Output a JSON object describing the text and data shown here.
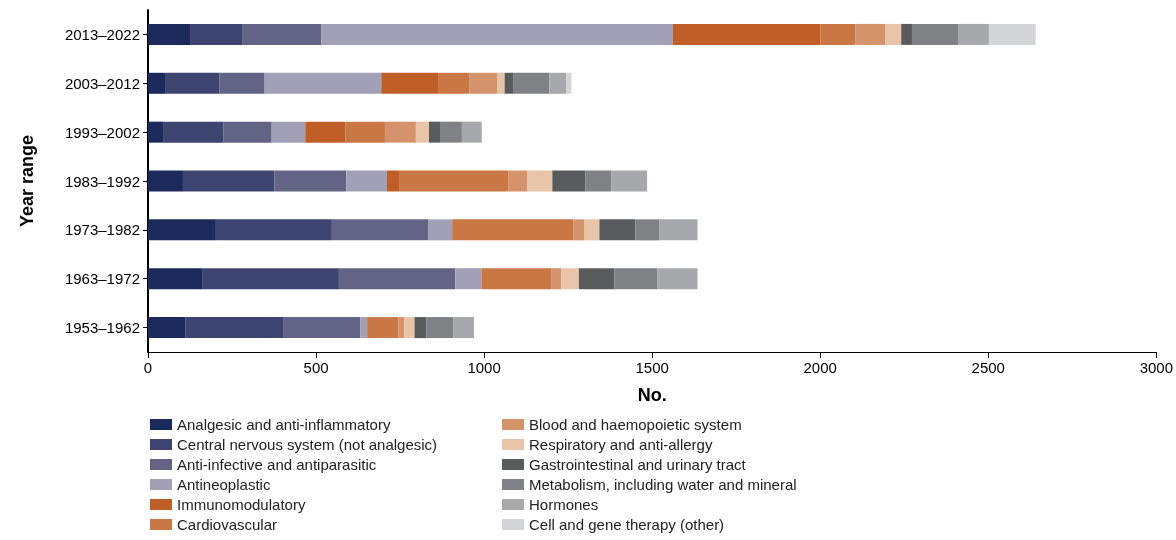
{
  "chart_data": {
    "type": "bar",
    "orientation": "horizontal",
    "stacked": true,
    "xlabel": "No.",
    "ylabel": "Year range",
    "categories": [
      "2013–2022",
      "2003–2012",
      "1993–2002",
      "1983–1992",
      "1973–1982",
      "1963–1972",
      "1953–1962"
    ],
    "series": [
      {
        "name": "Analgesic and anti-inflammatory",
        "color": "#1b2a5a",
        "values": [
          125,
          53,
          47,
          104,
          202,
          163,
          112
        ]
      },
      {
        "name": "Central nervous system (not analgesic)",
        "color": "#3e4470",
        "values": [
          157,
          160,
          178,
          272,
          345,
          405,
          292
        ]
      },
      {
        "name": "Anti-infective and antiparasitic",
        "color": "#636485",
        "values": [
          234,
          134,
          143,
          214,
          286,
          346,
          228
        ]
      },
      {
        "name": "Antineoplastic",
        "color": "#a2a0b7",
        "values": [
          1046,
          347,
          100,
          121,
          72,
          78,
          20
        ]
      },
      {
        "name": "Immunomodulatory",
        "color": "#c05e28",
        "values": [
          439,
          169,
          119,
          36,
          0,
          0,
          0
        ]
      },
      {
        "name": "Cardiovascular",
        "color": "#c97745",
        "values": [
          103,
          94,
          118,
          326,
          361,
          209,
          93
        ]
      },
      {
        "name": "Blood and haemopoietic system",
        "color": "#d4936a",
        "values": [
          89,
          83,
          92,
          56,
          33,
          29,
          18
        ]
      },
      {
        "name": "Respiratory and anti-allergy",
        "color": "#e8c4a8",
        "values": [
          48,
          21,
          39,
          74,
          44,
          52,
          30
        ]
      },
      {
        "name": "Gastrointestinal and urinary tract",
        "color": "#5a5b5d",
        "values": [
          32,
          27,
          35,
          98,
          107,
          106,
          35
        ]
      },
      {
        "name": "Metabolism, including water and mineral",
        "color": "#808184",
        "values": [
          137,
          106,
          63,
          77,
          72,
          128,
          81
        ]
      },
      {
        "name": "Hormones",
        "color": "#a7a8ab",
        "values": [
          92,
          51,
          59,
          107,
          113,
          119,
          61
        ]
      },
      {
        "name": "Cell and gene therapy (other)",
        "color": "#d4d5d7",
        "values": [
          139,
          15,
          0,
          0,
          0,
          0,
          0
        ]
      }
    ],
    "xlim": [
      0,
      3000
    ],
    "xticks": [
      0,
      500,
      1000,
      1500,
      2000,
      2500,
      3000
    ],
    "grid": false,
    "legend": "bottom"
  }
}
